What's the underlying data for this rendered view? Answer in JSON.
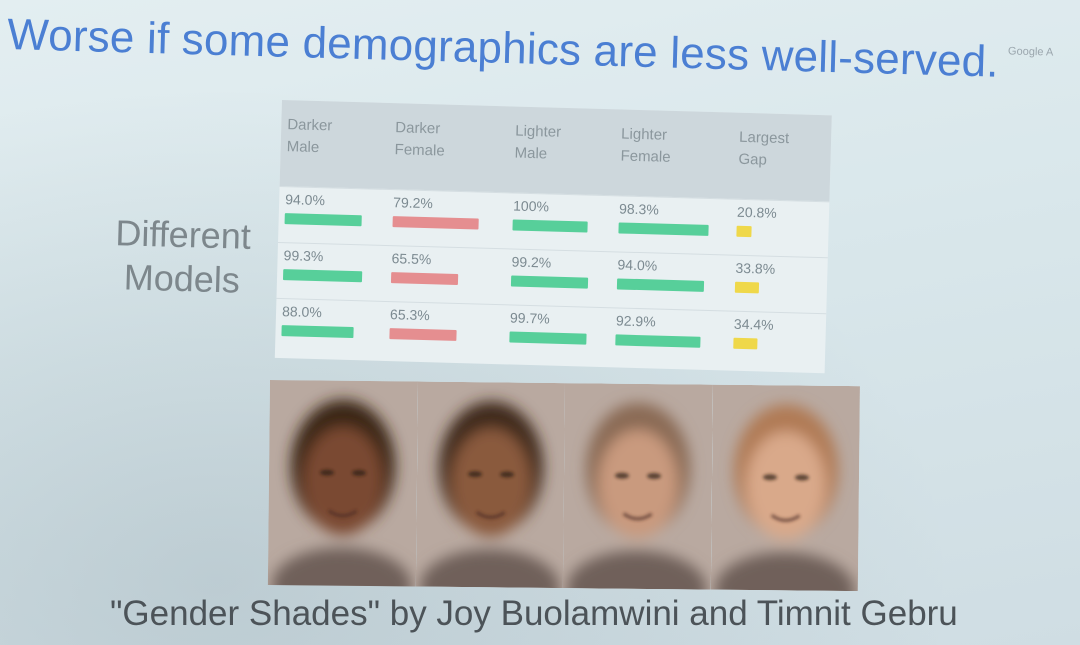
{
  "slide": {
    "title": "Worse if some demographics are less well-served.",
    "logo_text": "Google A",
    "side_label": "Different\nModels",
    "citation": "\"Gender Shades\" by Joy Buolamwini and Timnit Gebru"
  },
  "colors": {
    "title": "#4b7fd3",
    "good_bar": "#57cf9a",
    "bad_bar": "#e58e90",
    "gap_bar": "#efd84a"
  },
  "table": {
    "headers": [
      "Darker\nMale",
      "Darker\nFemale",
      "Lighter\nMale",
      "Lighter\nFemale",
      "Largest\nGap"
    ],
    "rows": [
      {
        "cells": [
          {
            "value": "94.0%",
            "bar_fraction": 0.8,
            "bar": "good"
          },
          {
            "value": "79.2%",
            "bar_fraction": 0.8,
            "bar": "bad"
          },
          {
            "value": "100%",
            "bar_fraction": 0.8,
            "bar": "good"
          },
          {
            "value": "98.3%",
            "bar_fraction": 0.85,
            "bar": "good"
          },
          {
            "value": "20.8%",
            "bar_fraction": 0.18,
            "bar": "gap"
          }
        ]
      },
      {
        "cells": [
          {
            "value": "99.3%",
            "bar_fraction": 0.82,
            "bar": "good"
          },
          {
            "value": "65.5%",
            "bar_fraction": 0.62,
            "bar": "bad"
          },
          {
            "value": "99.2%",
            "bar_fraction": 0.82,
            "bar": "good"
          },
          {
            "value": "94.0%",
            "bar_fraction": 0.82,
            "bar": "good"
          },
          {
            "value": "33.8%",
            "bar_fraction": 0.28,
            "bar": "gap"
          }
        ]
      },
      {
        "cells": [
          {
            "value": "88.0%",
            "bar_fraction": 0.75,
            "bar": "good"
          },
          {
            "value": "65.3%",
            "bar_fraction": 0.62,
            "bar": "bad"
          },
          {
            "value": "99.7%",
            "bar_fraction": 0.82,
            "bar": "good"
          },
          {
            "value": "92.9%",
            "bar_fraction": 0.8,
            "bar": "good"
          },
          {
            "value": "34.4%",
            "bar_fraction": 0.28,
            "bar": "gap"
          }
        ]
      }
    ]
  },
  "faces": [
    {
      "name": "darker-male-face",
      "skin": "#7a4a33",
      "hair": "#3a2519"
    },
    {
      "name": "darker-female-face",
      "skin": "#8a5a3e",
      "hair": "#3f2a1f"
    },
    {
      "name": "lighter-male-face",
      "skin": "#c99a7e",
      "hair": "#8a6a55"
    },
    {
      "name": "lighter-female-face",
      "skin": "#d9a98a",
      "hair": "#b07a55"
    }
  ]
}
